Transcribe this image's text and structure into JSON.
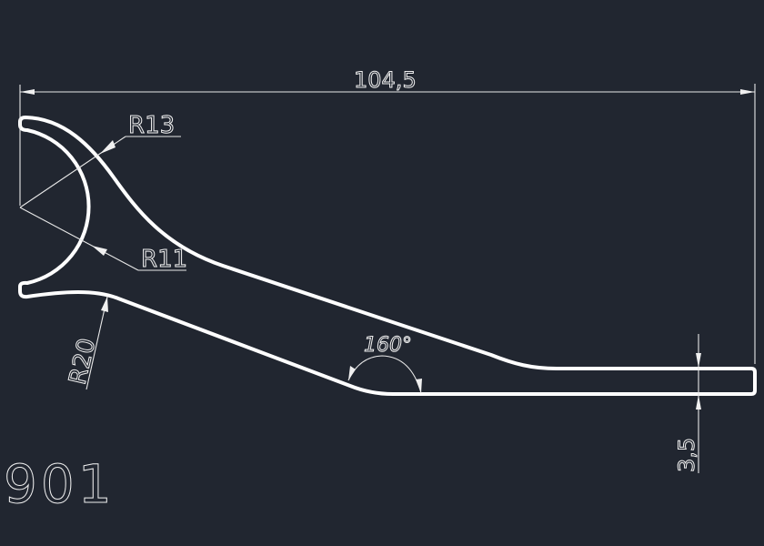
{
  "drawing": {
    "background": "#212630",
    "line_color": "#ffffff",
    "part_number": "901",
    "dimensions": {
      "overall_length": "104,5",
      "outer_radius": "R13",
      "inner_radius": "R11",
      "bend_radius": "R20",
      "angle": "160°",
      "thickness": "3,5"
    }
  }
}
